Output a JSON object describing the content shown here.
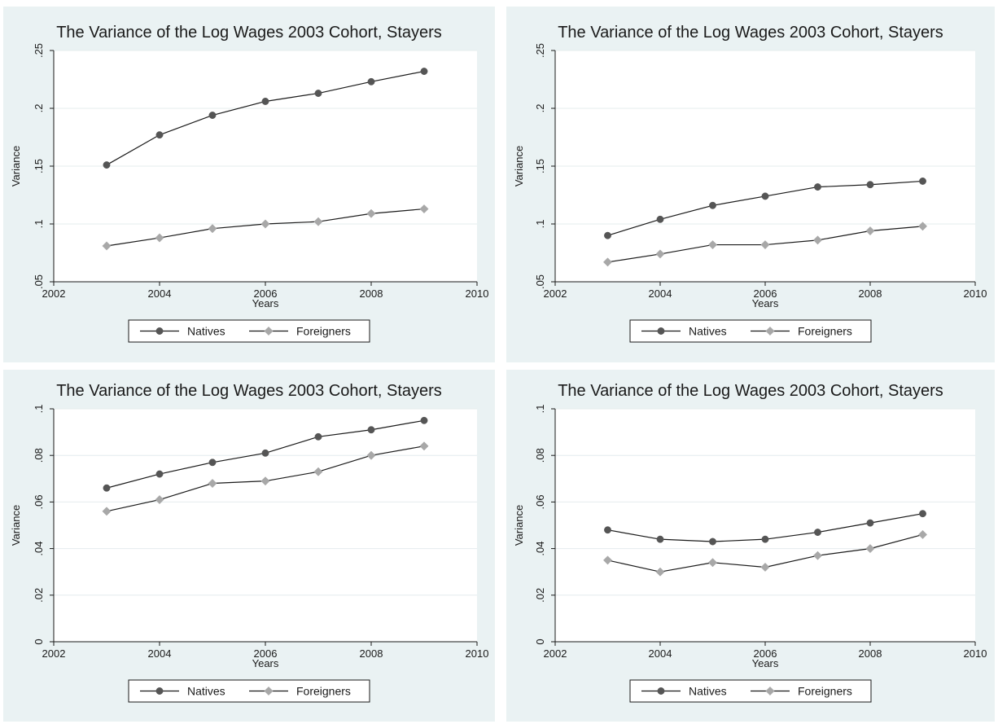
{
  "chart_data": [
    {
      "type": "line",
      "title": "The Variance of the Log Wages 2003 Cohort, Stayers",
      "xlabel": "Years",
      "ylabel": "Variance",
      "xlim": [
        2002,
        2010
      ],
      "xticks": [
        2002,
        2004,
        2006,
        2008,
        2010
      ],
      "ylim": [
        0.05,
        0.25
      ],
      "yticks": [
        0.05,
        0.1,
        0.15,
        0.2,
        0.25
      ],
      "ytick_labels": [
        ".05",
        ".1",
        ".15",
        ".2",
        ".25"
      ],
      "x": [
        2003,
        2004,
        2005,
        2006,
        2007,
        2008,
        2009
      ],
      "series": [
        {
          "name": "Natives",
          "marker": "circle",
          "color": "#555555",
          "values": [
            0.151,
            0.177,
            0.194,
            0.206,
            0.213,
            0.223,
            0.232
          ]
        },
        {
          "name": "Foreigners",
          "marker": "diamond",
          "color": "#a8a8a8",
          "values": [
            0.081,
            0.088,
            0.096,
            0.1,
            0.102,
            0.109,
            0.113
          ]
        }
      ],
      "legend": "bottom"
    },
    {
      "type": "line",
      "title": "The Variance of the Log Wages 2003 Cohort, Stayers",
      "xlabel": "Years",
      "ylabel": "Variance",
      "xlim": [
        2002,
        2010
      ],
      "xticks": [
        2002,
        2004,
        2006,
        2008,
        2010
      ],
      "ylim": [
        0.05,
        0.25
      ],
      "yticks": [
        0.05,
        0.1,
        0.15,
        0.2,
        0.25
      ],
      "ytick_labels": [
        ".05",
        ".1",
        ".15",
        ".2",
        ".25"
      ],
      "x": [
        2003,
        2004,
        2005,
        2006,
        2007,
        2008,
        2009
      ],
      "series": [
        {
          "name": "Natives",
          "marker": "circle",
          "color": "#555555",
          "values": [
            0.09,
            0.104,
            0.116,
            0.124,
            0.132,
            0.134,
            0.137
          ]
        },
        {
          "name": "Foreigners",
          "marker": "diamond",
          "color": "#a8a8a8",
          "values": [
            0.067,
            0.074,
            0.082,
            0.082,
            0.086,
            0.094,
            0.098
          ]
        }
      ],
      "legend": "bottom"
    },
    {
      "type": "line",
      "title": "The Variance of the Log Wages 2003 Cohort, Stayers",
      "xlabel": "Years",
      "ylabel": "Variance",
      "xlim": [
        2002,
        2010
      ],
      "xticks": [
        2002,
        2004,
        2006,
        2008,
        2010
      ],
      "ylim": [
        0,
        0.1
      ],
      "yticks": [
        0,
        0.02,
        0.04,
        0.06,
        0.08,
        0.1
      ],
      "ytick_labels": [
        "0",
        ".02",
        ".04",
        ".06",
        ".08",
        ".1"
      ],
      "x": [
        2003,
        2004,
        2005,
        2006,
        2007,
        2008,
        2009
      ],
      "series": [
        {
          "name": "Natives",
          "marker": "circle",
          "color": "#555555",
          "values": [
            0.066,
            0.072,
            0.077,
            0.081,
            0.088,
            0.091,
            0.095
          ]
        },
        {
          "name": "Foreigners",
          "marker": "diamond",
          "color": "#a8a8a8",
          "values": [
            0.056,
            0.061,
            0.068,
            0.069,
            0.073,
            0.08,
            0.084
          ]
        }
      ],
      "legend": "bottom"
    },
    {
      "type": "line",
      "title": "The Variance of the Log Wages 2003 Cohort, Stayers",
      "xlabel": "Years",
      "ylabel": "Variance",
      "xlim": [
        2002,
        2010
      ],
      "xticks": [
        2002,
        2004,
        2006,
        2008,
        2010
      ],
      "ylim": [
        0,
        0.1
      ],
      "yticks": [
        0,
        0.02,
        0.04,
        0.06,
        0.08,
        0.1
      ],
      "ytick_labels": [
        "0",
        ".02",
        ".04",
        ".06",
        ".08",
        ".1"
      ],
      "x": [
        2003,
        2004,
        2005,
        2006,
        2007,
        2008,
        2009
      ],
      "series": [
        {
          "name": "Natives",
          "marker": "circle",
          "color": "#555555",
          "values": [
            0.048,
            0.044,
            0.043,
            0.044,
            0.047,
            0.051,
            0.055
          ]
        },
        {
          "name": "Foreigners",
          "marker": "diamond",
          "color": "#a8a8a8",
          "values": [
            0.035,
            0.03,
            0.034,
            0.032,
            0.037,
            0.04,
            0.046
          ]
        }
      ],
      "legend": "bottom"
    }
  ]
}
